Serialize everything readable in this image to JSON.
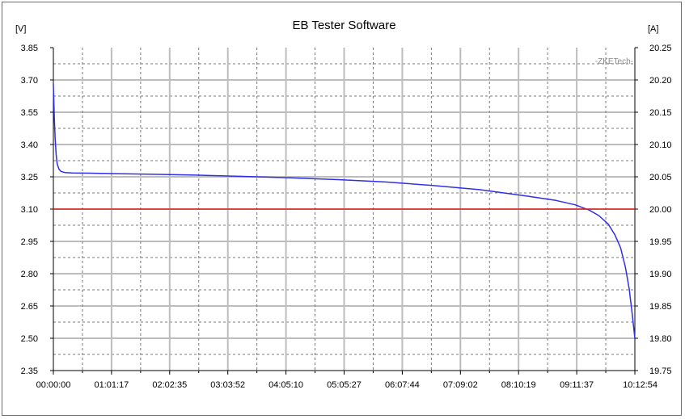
{
  "chart_data": {
    "type": "line",
    "title": "EB Tester Software",
    "watermark": "-ZKETech-",
    "y_left_unit": "[V]",
    "y_right_unit": "[A]",
    "y_left_ticks": [
      "3.85",
      "3.70",
      "3.55",
      "3.40",
      "3.25",
      "3.10",
      "2.95",
      "2.80",
      "2.65",
      "2.50",
      "2.35"
    ],
    "y_right_ticks": [
      "20.25",
      "20.20",
      "20.15",
      "20.10",
      "20.05",
      "20.00",
      "19.95",
      "19.90",
      "19.85",
      "19.80",
      "19.75"
    ],
    "x_ticks": [
      "00:00:00",
      "01:01:17",
      "02:02:35",
      "03:03:52",
      "04:05:10",
      "05:05:27",
      "06:07:44",
      "07:09:02",
      "08:10:19",
      "09:11:37",
      "10:12:54"
    ],
    "ylim_left": [
      2.35,
      3.85
    ],
    "ylim_right": [
      19.75,
      20.25
    ],
    "x_range_minutes": [
      0,
      613
    ],
    "series": [
      {
        "color": "#2f2fe6",
        "axis": "left",
        "x": [
          0,
          1,
          2,
          3,
          4,
          6,
          8,
          12,
          20,
          40,
          60,
          100,
          150,
          200,
          250,
          300,
          350,
          400,
          450,
          500,
          530,
          550,
          565,
          575,
          585,
          592,
          598,
          603,
          607,
          610,
          613
        ],
        "y": [
          3.68,
          3.52,
          3.42,
          3.35,
          3.31,
          3.285,
          3.275,
          3.27,
          3.268,
          3.267,
          3.265,
          3.262,
          3.258,
          3.252,
          3.245,
          3.237,
          3.226,
          3.21,
          3.19,
          3.16,
          3.14,
          3.12,
          3.095,
          3.07,
          3.03,
          2.98,
          2.92,
          2.83,
          2.73,
          2.62,
          2.5
        ]
      },
      {
        "color": "#e02020",
        "axis": "right",
        "x": [
          0,
          613
        ],
        "y": [
          20.0,
          20.0
        ]
      }
    ],
    "grid": true
  }
}
